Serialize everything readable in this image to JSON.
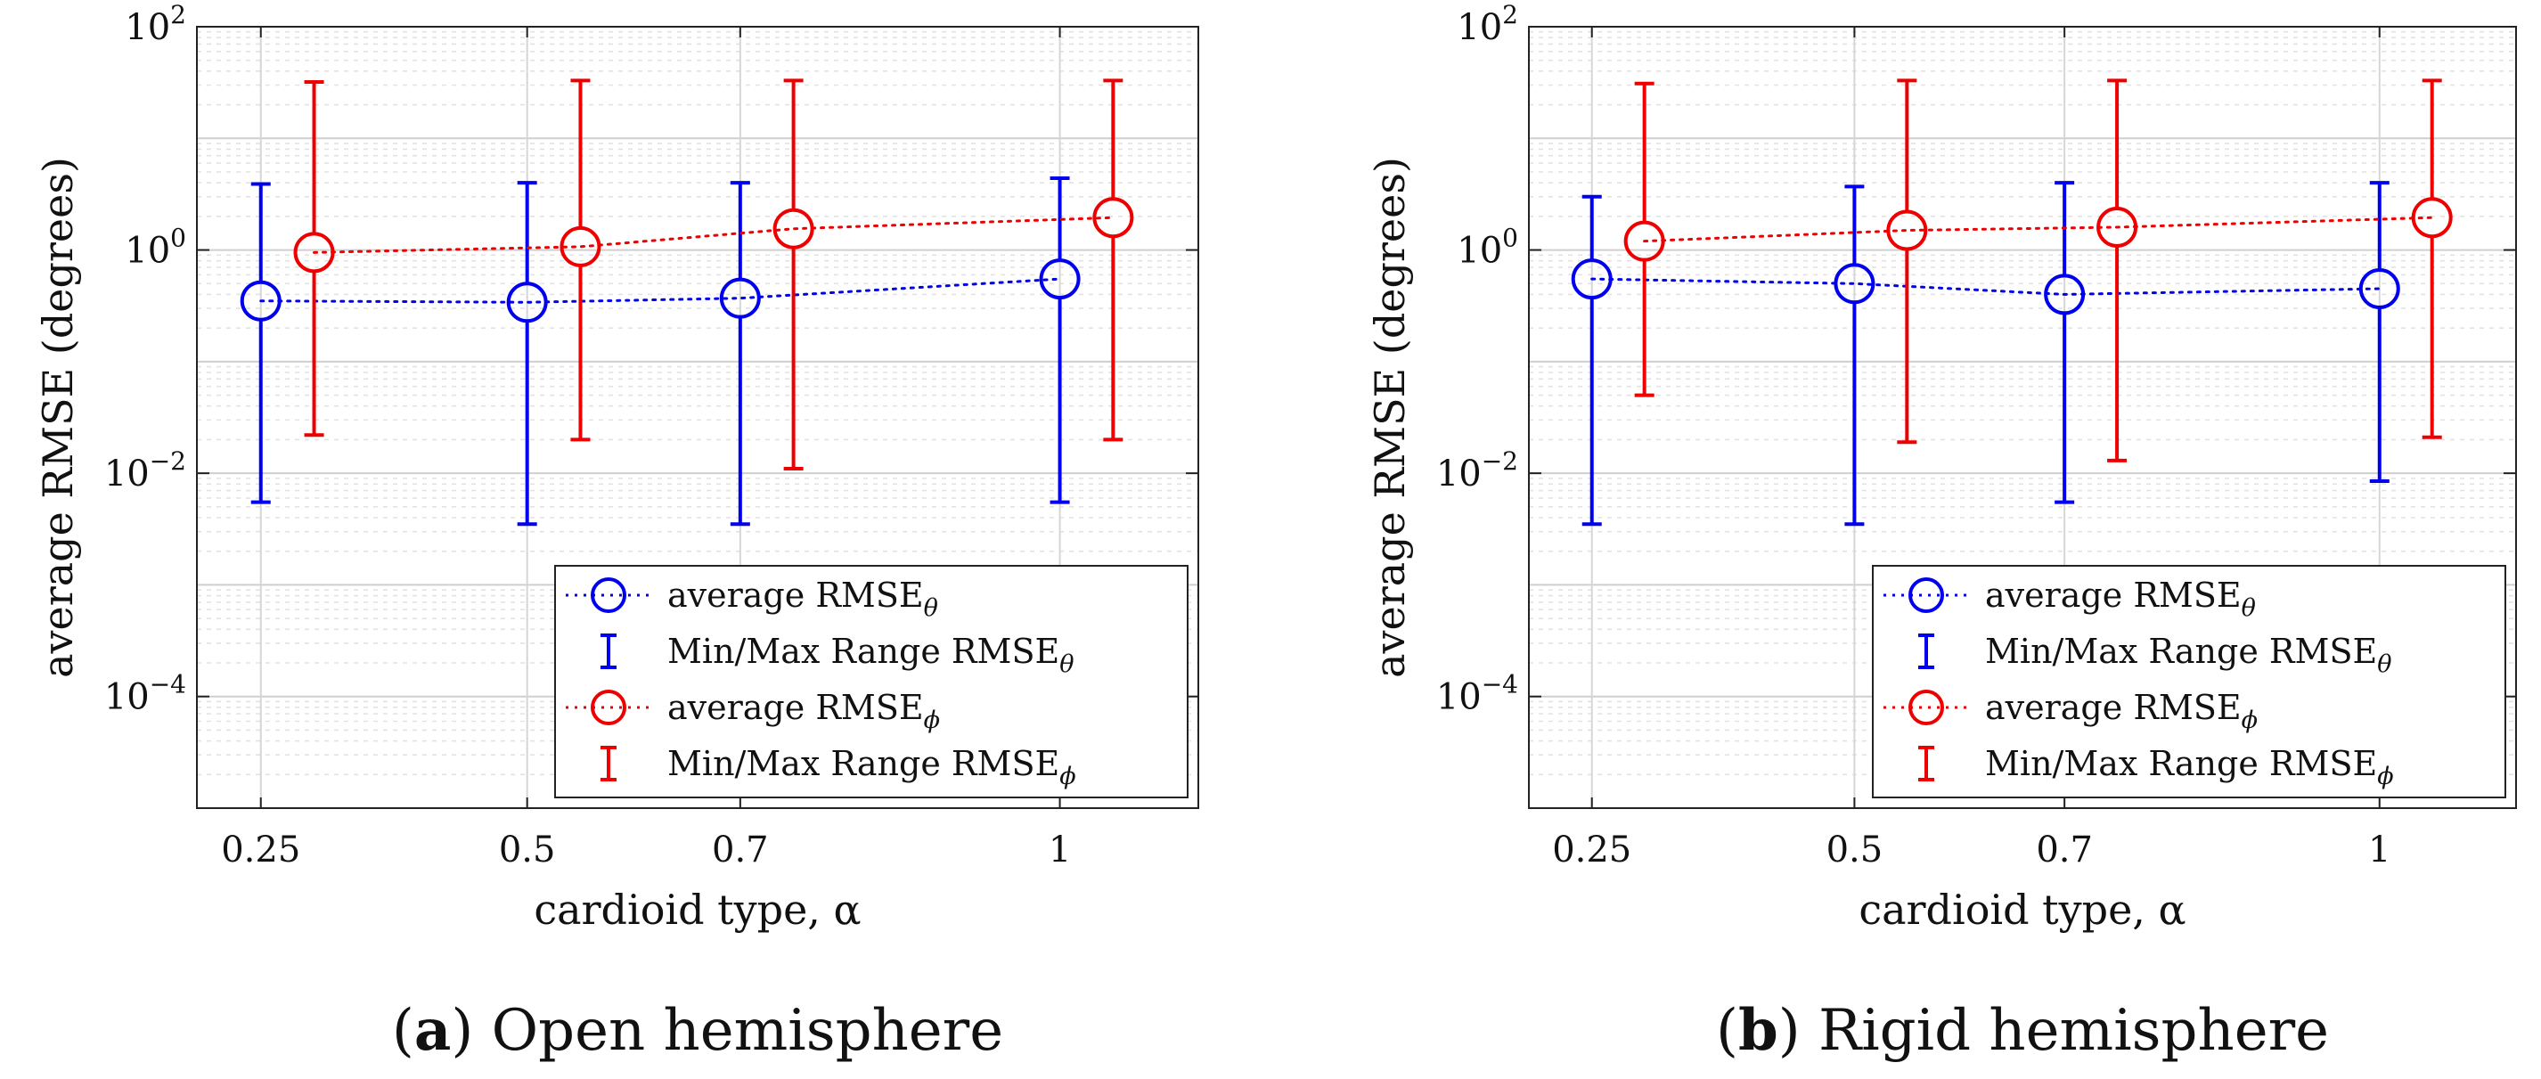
{
  "chart_data": [
    {
      "type": "scatter",
      "caption_letter": "a",
      "caption_text": "Open hemisphere",
      "xlabel": "cardioid type, α",
      "ylabel": "average RMSE (degrees)",
      "yscale": "log",
      "xlim": [
        0.19,
        1.13
      ],
      "ylim": [
        1e-05,
        100
      ],
      "xticks": [
        0.25,
        0.5,
        0.7,
        1
      ],
      "xtick_labels": [
        "0.25",
        "0.5",
        "0.7",
        "1"
      ],
      "yticks": [
        -4,
        -2,
        0,
        2
      ],
      "ytick_base": "10",
      "ytick_exps": [
        "−4",
        "−2",
        "0",
        "2"
      ],
      "grid": true,
      "legend_position": "bottom-right",
      "series": [
        {
          "name": "RMSE_theta",
          "color": "#0000ee",
          "x": [
            0.25,
            0.5,
            0.7,
            1.0
          ],
          "avg": [
            0.35,
            0.34,
            0.37,
            0.55
          ],
          "min": [
            0.0055,
            0.0035,
            0.0035,
            0.0055
          ],
          "max": [
            3.9,
            4.0,
            4.0,
            4.4
          ]
        },
        {
          "name": "RMSE_phi",
          "color": "#ee0000",
          "x": [
            0.3,
            0.55,
            0.75,
            1.05
          ],
          "avg": [
            0.95,
            1.07,
            1.55,
            1.95
          ],
          "min": [
            0.022,
            0.02,
            0.011,
            0.02
          ],
          "max": [
            32,
            33,
            33,
            33
          ]
        }
      ],
      "legend": [
        {
          "kind": "avg",
          "series": 0,
          "text": "average RMSE",
          "sub": "θ"
        },
        {
          "kind": "range",
          "series": 0,
          "text": "Min/Max Range RMSE",
          "sub": "θ"
        },
        {
          "kind": "avg",
          "series": 1,
          "text": "average RMSE",
          "sub": "ϕ"
        },
        {
          "kind": "range",
          "series": 1,
          "text": "Min/Max Range RMSE",
          "sub": "ϕ"
        }
      ]
    },
    {
      "type": "scatter",
      "caption_letter": "b",
      "caption_text": "Rigid hemisphere",
      "xlabel": "cardioid type, α",
      "ylabel": "average RMSE (degrees)",
      "yscale": "log",
      "xlim": [
        0.19,
        1.13
      ],
      "ylim": [
        1e-05,
        100
      ],
      "xticks": [
        0.25,
        0.5,
        0.7,
        1
      ],
      "xtick_labels": [
        "0.25",
        "0.5",
        "0.7",
        "1"
      ],
      "yticks": [
        -4,
        -2,
        0,
        2
      ],
      "ytick_base": "10",
      "ytick_exps": [
        "−4",
        "−2",
        "0",
        "2"
      ],
      "grid": true,
      "legend_position": "bottom-right",
      "series": [
        {
          "name": "RMSE_theta",
          "color": "#0000ee",
          "x": [
            0.25,
            0.5,
            0.7,
            1.0
          ],
          "avg": [
            0.55,
            0.5,
            0.4,
            0.45
          ],
          "min": [
            0.0035,
            0.0035,
            0.0055,
            0.0085
          ],
          "max": [
            3.0,
            3.7,
            4.0,
            4.0
          ]
        },
        {
          "name": "RMSE_phi",
          "color": "#ee0000",
          "x": [
            0.3,
            0.55,
            0.75,
            1.05
          ],
          "avg": [
            1.2,
            1.5,
            1.6,
            1.95
          ],
          "min": [
            0.05,
            0.019,
            0.013,
            0.021
          ],
          "max": [
            31,
            33,
            33,
            33
          ]
        }
      ],
      "legend": [
        {
          "kind": "avg",
          "series": 0,
          "text": "average RMSE",
          "sub": "θ"
        },
        {
          "kind": "range",
          "series": 0,
          "text": "Min/Max Range RMSE",
          "sub": "θ"
        },
        {
          "kind": "avg",
          "series": 1,
          "text": "average RMSE",
          "sub": "ϕ"
        },
        {
          "kind": "range",
          "series": 1,
          "text": "Min/Max Range RMSE",
          "sub": "ϕ"
        }
      ]
    }
  ]
}
